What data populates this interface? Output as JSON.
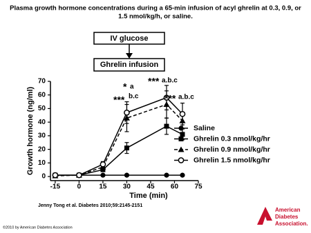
{
  "chart_data": {
    "type": "line",
    "title": "Plasma growth hormone concentrations during a 65-min infusion of acyl ghrelin at 0.3, 0.9, or",
    "subtitle": "1.5 nmol/kg/h, or saline.",
    "flow": [
      "IV glucose",
      "Ghrelin infusion"
    ],
    "x_label": "Time (min)",
    "y_label": "Growth hormone (ng/ml)",
    "x": [
      -15,
      0,
      15,
      30,
      55,
      65
    ],
    "series": [
      {
        "name": "Saline",
        "color": "#000000",
        "marker": "circle",
        "dash": false,
        "values": [
          1,
          1,
          1,
          1,
          1,
          1
        ],
        "errors": [
          0.5,
          0.5,
          0.5,
          0.5,
          0.5,
          0.5
        ]
      },
      {
        "name": "Ghrelin 0.3 nmol/kg/hr",
        "color": "#000000",
        "marker": "square",
        "dash": false,
        "values": [
          1,
          1,
          5,
          21,
          37,
          31
        ],
        "errors": [
          0.5,
          0.5,
          1,
          4,
          6,
          4
        ]
      },
      {
        "name": "Ghrelin 0.9 nmol/kg/hr",
        "color": "#000000",
        "marker": "triangle",
        "dash": true,
        "values": [
          0.5,
          1,
          7,
          43,
          53,
          41
        ],
        "errors": [
          0.5,
          0.5,
          2,
          10,
          10,
          6
        ]
      },
      {
        "name": "Ghrelin 1.5 nmol/kg/hr",
        "color": "#000000",
        "marker": "open-circle",
        "dash": false,
        "values": [
          1,
          1,
          9,
          47,
          58,
          46
        ],
        "errors": [
          0.5,
          0.5,
          2,
          8,
          9,
          8
        ]
      }
    ],
    "annotations": [
      "*",
      "a",
      "***",
      "b.c",
      "***",
      "a.b.c",
      "***",
      "a.b.c"
    ],
    "xlim": [
      -18,
      75
    ],
    "xticks": [
      -15,
      0,
      15,
      30,
      45,
      60,
      75
    ],
    "ylim": [
      -3,
      70
    ],
    "yticks": [
      0,
      10,
      20,
      30,
      40,
      50,
      60,
      70
    ],
    "grid": false
  },
  "citation": "Jenny Tong et al. Diabetes 2010;59:2145-2151",
  "copyright": "©2010 by American Diabetes Association",
  "logo": [
    "American",
    "Diabetes",
    "Association."
  ]
}
